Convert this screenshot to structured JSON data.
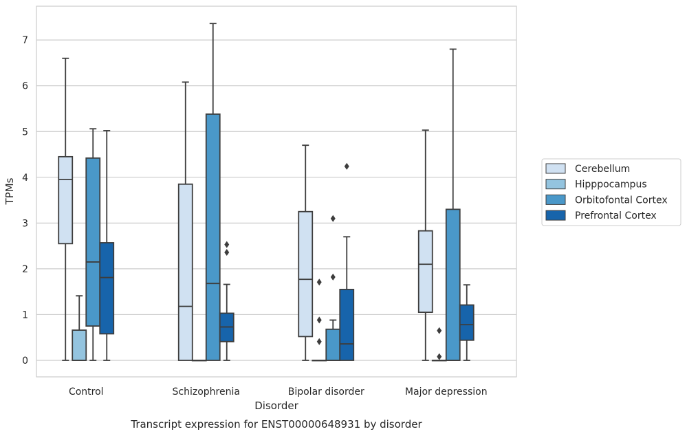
{
  "chart_data": {
    "type": "box",
    "title": "Transcript expression for ENST00000648931 by disorder",
    "xlabel": "Disorder",
    "ylabel": "TPMs",
    "ylim": [
      -0.35,
      7.75
    ],
    "yticks": [
      0,
      1,
      2,
      3,
      4,
      5,
      6,
      7
    ],
    "grid": "horizontal",
    "legend_position": "right",
    "categories": [
      "Control",
      "Schizophrenia",
      "Bipolar disorder",
      "Major depression"
    ],
    "series": [
      {
        "name": "Cerebellum",
        "color": "#d0e1f2",
        "boxes": [
          {
            "min": 0,
            "q1": 2.55,
            "median": 3.95,
            "q3": 4.45,
            "max": 6.6,
            "outliers": []
          },
          {
            "min": 0,
            "q1": 0,
            "median": 1.18,
            "q3": 3.85,
            "max": 6.08,
            "outliers": []
          },
          {
            "min": 0,
            "q1": 0.52,
            "median": 1.77,
            "q3": 3.25,
            "max": 4.7,
            "outliers": []
          },
          {
            "min": 0,
            "q1": 1.05,
            "median": 2.1,
            "q3": 2.83,
            "max": 5.03,
            "outliers": []
          }
        ]
      },
      {
        "name": "Hipppocampus",
        "color": "#94c4df",
        "boxes": [
          {
            "min": 0,
            "q1": 0,
            "median": 0,
            "q3": 0.66,
            "max": 1.41,
            "outliers": []
          },
          {
            "min": 0,
            "q1": 0,
            "median": 0,
            "q3": 0,
            "max": 0,
            "outliers": []
          },
          {
            "min": 0,
            "q1": 0,
            "median": 0,
            "q3": 0,
            "max": 0,
            "outliers": [
              1.71,
              0.88,
              0.41
            ]
          },
          {
            "min": 0,
            "q1": 0,
            "median": 0,
            "q3": 0,
            "max": 0,
            "outliers": [
              0.65,
              0.08
            ]
          }
        ]
      },
      {
        "name": "Orbitofontal Cortex",
        "color": "#4a98c9",
        "boxes": [
          {
            "min": 0,
            "q1": 0.75,
            "median": 2.15,
            "q3": 4.42,
            "max": 5.06,
            "outliers": []
          },
          {
            "min": 0,
            "q1": 0,
            "median": 1.68,
            "q3": 5.38,
            "max": 7.36,
            "outliers": []
          },
          {
            "min": 0,
            "q1": 0,
            "median": 0,
            "q3": 0.68,
            "max": 0.88,
            "outliers": [
              3.1,
              1.82
            ]
          },
          {
            "min": 0,
            "q1": 0,
            "median": 0,
            "q3": 3.3,
            "max": 6.8,
            "outliers": []
          }
        ]
      },
      {
        "name": "Prefrontal Cortex",
        "color": "#1764ab",
        "boxes": [
          {
            "min": 0,
            "q1": 0.58,
            "median": 1.81,
            "q3": 2.57,
            "max": 5.02,
            "outliers": []
          },
          {
            "min": 0,
            "q1": 0.41,
            "median": 0.73,
            "q3": 1.03,
            "max": 1.66,
            "outliers": [
              2.53,
              2.36
            ]
          },
          {
            "min": 0,
            "q1": 0,
            "median": 0.36,
            "q3": 1.55,
            "max": 2.7,
            "outliers": [
              4.24
            ]
          },
          {
            "min": 0,
            "q1": 0.44,
            "median": 0.78,
            "q3": 1.21,
            "max": 1.65,
            "outliers": []
          }
        ]
      }
    ]
  }
}
